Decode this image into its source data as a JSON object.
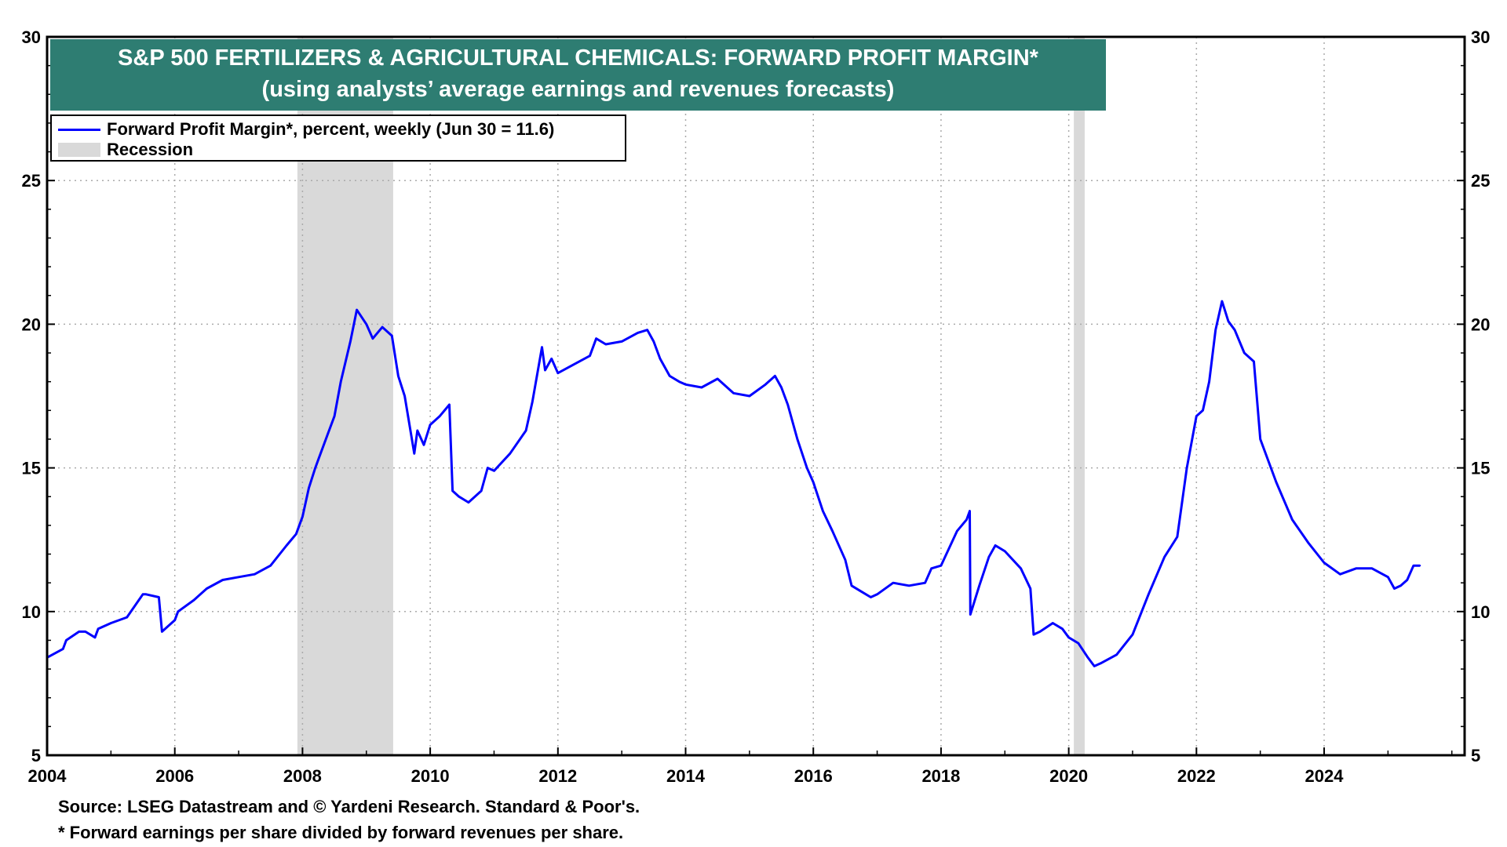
{
  "chart_data": {
    "type": "line",
    "title": "S&P 500 FERTILIZERS & AGRICULTURAL CHEMICALS: FORWARD PROFIT MARGIN*",
    "subtitle": "(using analysts’ average earnings and revenues forecasts)",
    "xlabel": "",
    "ylabel": "",
    "xlim": [
      2004.0,
      2026.2
    ],
    "ylim": [
      5,
      30
    ],
    "yticks": [
      5,
      10,
      15,
      20,
      25,
      30
    ],
    "xticks": [
      2004,
      2006,
      2008,
      2010,
      2012,
      2014,
      2016,
      2018,
      2020,
      2022,
      2024
    ],
    "grid": true,
    "legend_position": "top-left",
    "colors": {
      "line": "#0000ff",
      "recession": "#d9d9d9",
      "title_band": "#2e7d72"
    },
    "legend": {
      "series_label": "Forward Profit Margin*, percent, weekly (Jun 30 = 11.6)",
      "recession_label": "Recession"
    },
    "recessions": [
      {
        "start": 2007.92,
        "end": 2009.42
      },
      {
        "start": 2020.08,
        "end": 2020.25
      }
    ],
    "series": [
      {
        "name": "Forward Profit Margin*, percent, weekly (Jun 30 = 11.6)",
        "x": [
          2004.0,
          2004.25,
          2004.3,
          2004.5,
          2004.6,
          2004.75,
          2004.8,
          2005.0,
          2005.25,
          2005.5,
          2005.55,
          2005.75,
          2005.8,
          2006.0,
          2006.05,
          2006.3,
          2006.5,
          2006.75,
          2007.0,
          2007.25,
          2007.5,
          2007.75,
          2007.9,
          2008.0,
          2008.1,
          2008.2,
          2008.25,
          2008.4,
          2008.5,
          2008.6,
          2008.75,
          2008.85,
          2009.0,
          2009.1,
          2009.25,
          2009.4,
          2009.5,
          2009.6,
          2009.75,
          2009.8,
          2009.9,
          2010.0,
          2010.15,
          2010.3,
          2010.35,
          2010.45,
          2010.6,
          2010.8,
          2010.9,
          2011.0,
          2011.25,
          2011.5,
          2011.6,
          2011.75,
          2011.8,
          2011.9,
          2012.0,
          2012.25,
          2012.5,
          2012.6,
          2012.75,
          2013.0,
          2013.25,
          2013.4,
          2013.5,
          2013.6,
          2013.75,
          2013.9,
          2014.0,
          2014.25,
          2014.5,
          2014.75,
          2015.0,
          2015.25,
          2015.4,
          2015.5,
          2015.6,
          2015.75,
          2015.9,
          2016.0,
          2016.15,
          2016.3,
          2016.5,
          2016.6,
          2016.75,
          2016.9,
          2017.0,
          2017.25,
          2017.5,
          2017.75,
          2017.85,
          2018.0,
          2018.25,
          2018.4,
          2018.45,
          2018.46,
          2018.6,
          2018.75,
          2018.85,
          2019.0,
          2019.25,
          2019.4,
          2019.45,
          2019.55,
          2019.75,
          2019.9,
          2020.0,
          2020.15,
          2020.3,
          2020.4,
          2020.5,
          2020.75,
          2021.0,
          2021.25,
          2021.5,
          2021.7,
          2021.85,
          2022.0,
          2022.1,
          2022.2,
          2022.3,
          2022.4,
          2022.5,
          2022.6,
          2022.75,
          2022.9,
          2023.0,
          2023.25,
          2023.5,
          2023.75,
          2024.0,
          2024.25,
          2024.5,
          2024.75,
          2025.0,
          2025.1,
          2025.2,
          2025.3,
          2025.4,
          2025.5
        ],
        "values": [
          8.4,
          8.7,
          9.0,
          9.3,
          9.3,
          9.1,
          9.4,
          9.6,
          9.8,
          10.6,
          10.6,
          10.5,
          9.3,
          9.7,
          10.0,
          10.4,
          10.8,
          11.1,
          11.2,
          11.3,
          11.6,
          12.3,
          12.7,
          13.3,
          14.3,
          15.0,
          15.3,
          16.2,
          16.8,
          18.0,
          19.4,
          20.5,
          20.0,
          19.5,
          19.9,
          19.6,
          18.2,
          17.5,
          15.5,
          16.3,
          15.8,
          16.5,
          16.8,
          17.2,
          14.2,
          14.0,
          13.8,
          14.2,
          15.0,
          14.9,
          15.5,
          16.3,
          17.3,
          19.2,
          18.4,
          18.8,
          18.3,
          18.6,
          18.9,
          19.5,
          19.3,
          19.4,
          19.7,
          19.8,
          19.4,
          18.8,
          18.2,
          18.0,
          17.9,
          17.8,
          18.1,
          17.6,
          17.5,
          17.9,
          18.2,
          17.8,
          17.2,
          16.0,
          15.0,
          14.5,
          13.5,
          12.8,
          11.8,
          10.9,
          10.7,
          10.5,
          10.6,
          11.0,
          10.9,
          11.0,
          11.5,
          11.6,
          12.8,
          13.2,
          13.5,
          9.9,
          10.9,
          11.9,
          12.3,
          12.1,
          11.5,
          10.8,
          9.2,
          9.3,
          9.6,
          9.4,
          9.1,
          8.9,
          8.4,
          8.1,
          8.2,
          8.5,
          9.2,
          10.6,
          11.9,
          12.6,
          15.0,
          16.8,
          17.0,
          18.0,
          19.8,
          20.8,
          20.1,
          19.8,
          19.0,
          18.7,
          16.0,
          14.5,
          13.2,
          12.4,
          11.7,
          11.3,
          11.5,
          11.5,
          11.2,
          10.8,
          10.9,
          11.1,
          11.6,
          11.6
        ]
      }
    ],
    "source_note": "Source: LSEG Datastream and © Yardeni Research. Standard & Poor's.",
    "footnote": "* Forward earnings per share divided by forward revenues per share."
  }
}
